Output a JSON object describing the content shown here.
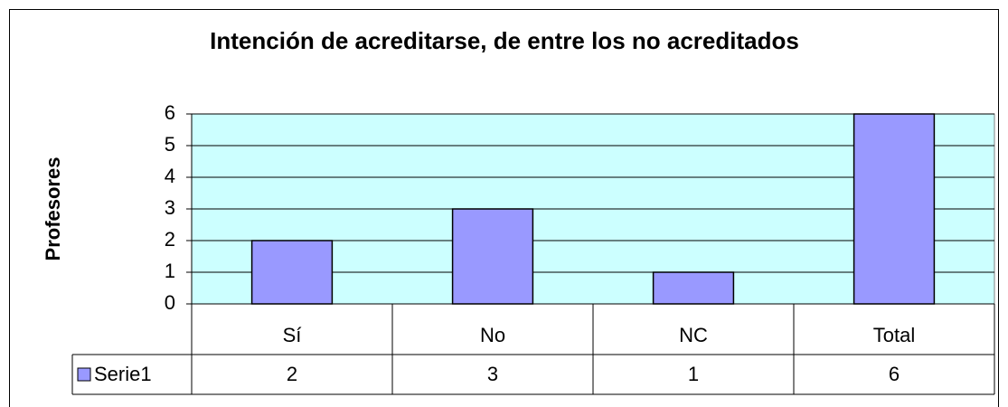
{
  "chart_data": {
    "type": "bar",
    "title": "Intención de acreditarse, de entre los no acreditados",
    "y_label": "Profesores",
    "categories": [
      "Sí",
      "No",
      "NC",
      "Total"
    ],
    "series": [
      {
        "name": "Serie1",
        "color": "#9999ff",
        "values": [
          2,
          3,
          1,
          6
        ]
      }
    ],
    "ylim": [
      0,
      6
    ],
    "yticks": [
      0,
      1,
      2,
      3,
      4,
      5,
      6
    ],
    "grid": true,
    "plot_background": "#ccffff"
  }
}
